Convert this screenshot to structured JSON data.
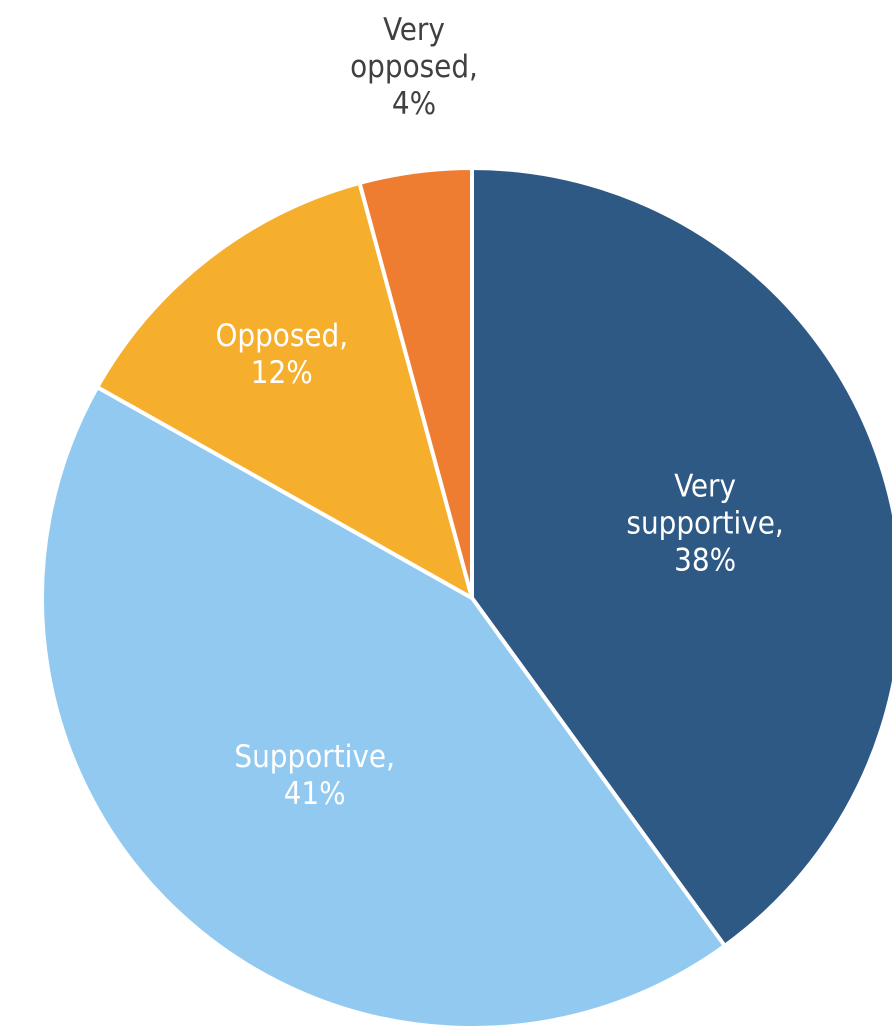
{
  "chart_data": {
    "type": "pie",
    "title": "",
    "slices": [
      {
        "label_lines": [
          "Very",
          "supportive,",
          "38%"
        ],
        "value": 38,
        "color": "#2e5985",
        "label_color": "#ffffff"
      },
      {
        "label_lines": [
          "Supportive,",
          "41%"
        ],
        "value": 41,
        "color": "#92c9f1",
        "label_color": "#ffffff"
      },
      {
        "label_lines": [
          "Opposed,",
          "12%"
        ],
        "value": 12,
        "color": "#f6ae2d",
        "label_color": "#ffffff"
      },
      {
        "label_lines": [
          "Very",
          "opposed,",
          "4%"
        ],
        "value": 4,
        "color": "#ef7d31",
        "label_color": "#404040"
      }
    ],
    "start_angle_deg": 0,
    "direction": "clockwise",
    "legend": "none"
  }
}
